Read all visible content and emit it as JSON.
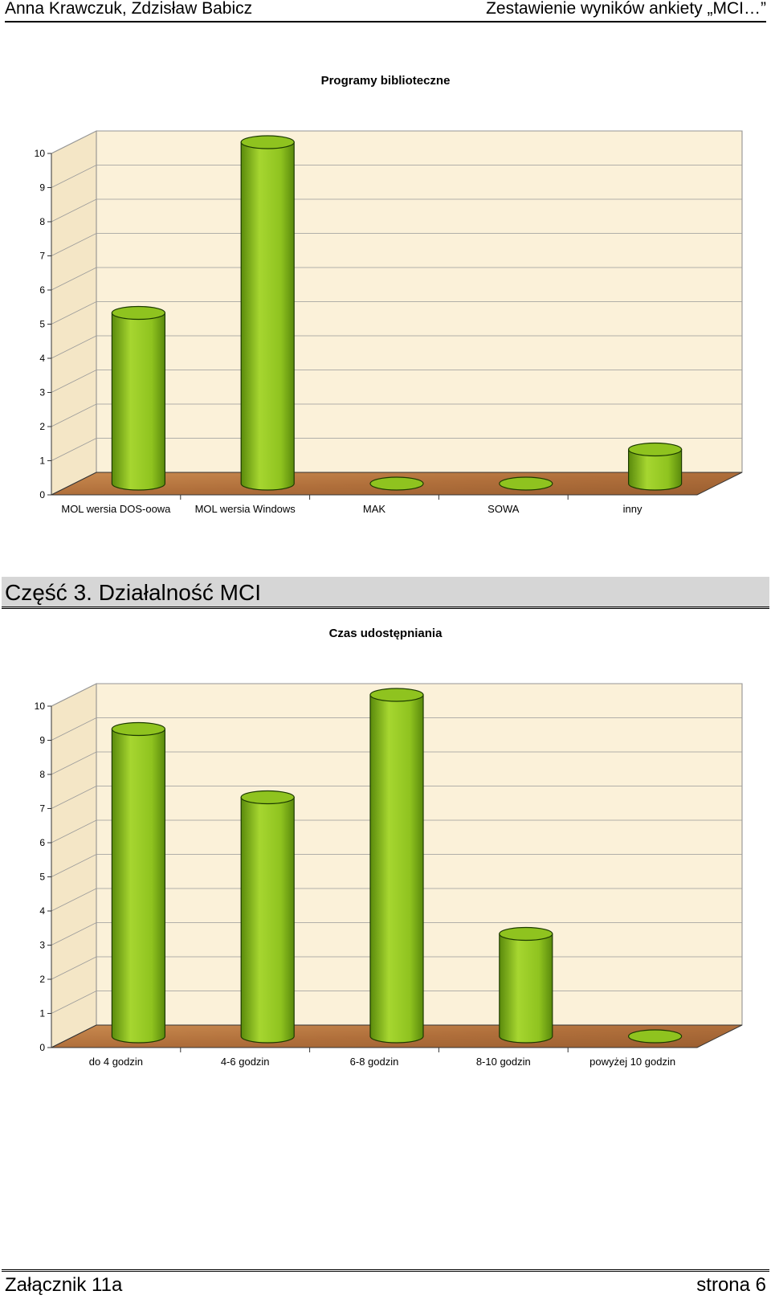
{
  "header": {
    "left": "Anna Krawczuk, Zdzisław Babicz",
    "right": "Zestawienie wyników ankiety „MCI…”"
  },
  "section": {
    "heading": "Część 3. Działalność MCI"
  },
  "footer": {
    "left": "Załącznik 11a",
    "right": "strona 6"
  },
  "colors": {
    "bar": "#8fc31f",
    "bar_dark": "#5a8a0c",
    "bar_top": "#a6d630",
    "wall": "#fbf1d9",
    "floor": "#b06f3b",
    "grid": "#999999"
  },
  "chart_data": [
    {
      "type": "bar",
      "title": "Programy biblioteczne",
      "categories": [
        "MOL wersia DOS-oowa",
        "MOL wersia Windows",
        "MAK",
        "SOWA",
        "inny"
      ],
      "values": [
        5,
        10,
        0,
        0,
        1
      ],
      "ylim": [
        0,
        10
      ],
      "yticks": [
        "0",
        "1",
        "2",
        "3",
        "4",
        "5",
        "6",
        "7",
        "8",
        "9",
        "10"
      ],
      "grid": true,
      "style": "3d-cylinder"
    },
    {
      "type": "bar",
      "title": "Czas udostępniania",
      "categories": [
        "do 4 godzin",
        "4-6 godzin",
        "6-8 godzin",
        "8-10 godzin",
        "powyżej 10 godzin"
      ],
      "values": [
        9,
        7,
        10,
        3,
        0
      ],
      "ylim": [
        0,
        10
      ],
      "yticks": [
        "0",
        "1",
        "2",
        "3",
        "4",
        "5",
        "6",
        "7",
        "8",
        "9",
        "10"
      ],
      "grid": true,
      "style": "3d-cylinder"
    }
  ]
}
